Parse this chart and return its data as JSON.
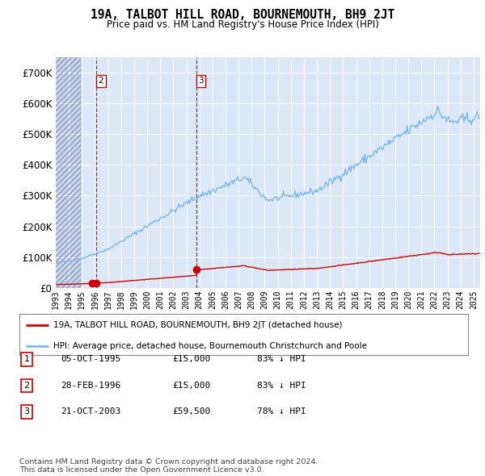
{
  "title": "19A, TALBOT HILL ROAD, BOURNEMOUTH, BH9 2JT",
  "subtitle": "Price paid vs. HM Land Registry's House Price Index (HPI)",
  "hpi_color": "#7ab8f5",
  "price_color": "#cc0000",
  "bg_chart": "#dce8f8",
  "transactions": [
    {
      "date": "05-OCT-1995",
      "price": 15000,
      "label": "1",
      "pct": "83%"
    },
    {
      "date": "28-FEB-1996",
      "price": 15000,
      "label": "2",
      "pct": "83%"
    },
    {
      "date": "21-OCT-2003",
      "price": 59500,
      "label": "3",
      "pct": "78%"
    }
  ],
  "legend_line1": "19A, TALBOT HILL ROAD, BOURNEMOUTH, BH9 2JT (detached house)",
  "legend_line2": "HPI: Average price, detached house, Bournemouth Christchurch and Poole",
  "footnote": "Contains HM Land Registry data © Crown copyright and database right 2024.\nThis data is licensed under the Open Government Licence v3.0.",
  "ylim_max": 750000,
  "yticks": [
    0,
    100000,
    200000,
    300000,
    400000,
    500000,
    600000,
    700000
  ],
  "xmin": 1993,
  "xmax": 2025.5
}
